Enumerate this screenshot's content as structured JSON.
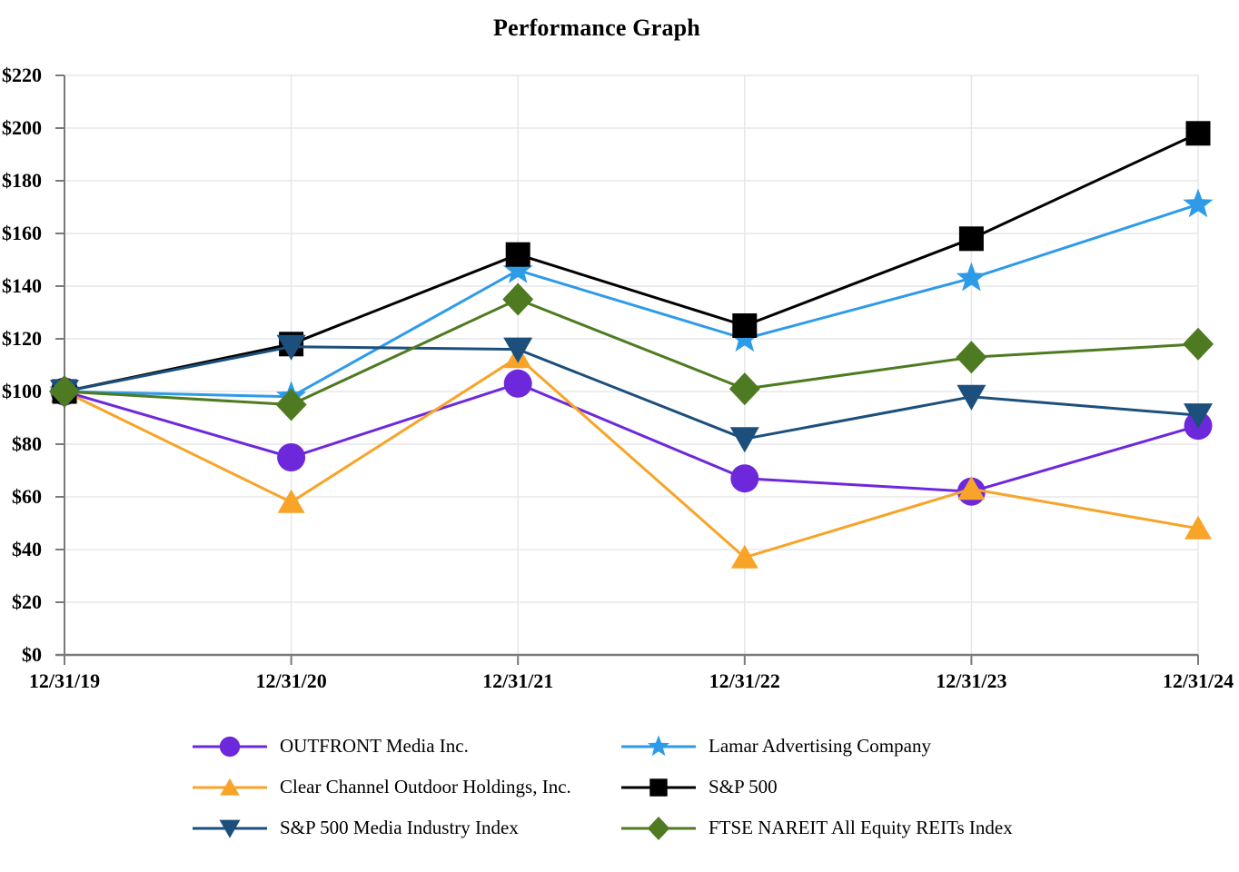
{
  "page": {
    "background": "#ffffff",
    "text_color": "#000000"
  },
  "chart_data": {
    "type": "line",
    "title": "Performance Graph",
    "x_categories": [
      "12/31/19",
      "12/31/20",
      "12/31/21",
      "12/31/22",
      "12/31/23",
      "12/31/24"
    ],
    "y_axis": {
      "min": 0,
      "max": 220,
      "step": 20,
      "tick_prefix": "$"
    },
    "grid": true,
    "legend_position": "bottom-two-columns",
    "series": [
      {
        "name": "OUTFRONT Media Inc.",
        "marker": "circle",
        "color": "#6e28dc",
        "values": [
          100,
          75,
          103,
          67,
          62,
          87
        ]
      },
      {
        "name": "Clear Channel Outdoor Holdings, Inc.",
        "marker": "triangle-up",
        "color": "#f7a428",
        "values": [
          100,
          58,
          113,
          37,
          63,
          48
        ]
      },
      {
        "name": "Lamar Advertising Company",
        "marker": "star",
        "color": "#2e9be9",
        "values": [
          100,
          98,
          146,
          120,
          143,
          171
        ]
      },
      {
        "name": "S&P 500",
        "marker": "square",
        "color": "#000000",
        "values": [
          100,
          118,
          152,
          125,
          158,
          198
        ]
      },
      {
        "name": "S&P 500 Media Industry Index",
        "marker": "triangle-down",
        "color": "#1c4f7c",
        "values": [
          100,
          117,
          116,
          82,
          98,
          91
        ]
      },
      {
        "name": "FTSE NAREIT All Equity REITs Index",
        "marker": "diamond",
        "color": "#4e7b21",
        "values": [
          100,
          95,
          135,
          101,
          113,
          118
        ]
      }
    ],
    "legend_columns": [
      [
        0,
        1,
        4
      ],
      [
        2,
        3,
        5
      ]
    ]
  },
  "style_colors": {
    "gridline": "#e7e7e7",
    "axis": "#7a7a7a",
    "tick": "#7a7a7a"
  }
}
